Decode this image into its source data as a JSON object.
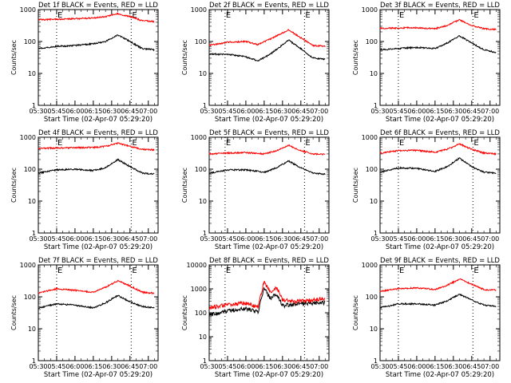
{
  "figure": {
    "xlabel": "Start Time (02-Apr-07 05:29:20)",
    "ylabel": "Counts/sec",
    "x_tick_labels": [
      "05:30",
      "05:45",
      "06:00",
      "06:15",
      "06:30",
      "06:45",
      "07:00"
    ],
    "marker_letter": "E"
  },
  "chart_data": [
    {
      "type": "line",
      "title": "Det 1f BLACK = Events, RED = LLD",
      "xlabel": "Start Time (02-Apr-07 05:29:20)",
      "ylabel": "Counts/sec",
      "yscale": "log",
      "ylim": [
        1,
        1000
      ],
      "y_tick_labels": [
        "1",
        "10",
        "100",
        "1000"
      ],
      "x_tick_labels": [
        "05:30",
        "05:45",
        "06:00",
        "06:15",
        "06:30",
        "06:45",
        "07:00"
      ],
      "xlim": [
        "05:30",
        "07:08"
      ],
      "event_markers": [
        "05:45",
        "06:46"
      ],
      "grid": false,
      "series": [
        {
          "color": "#000000",
          "x": [
            "05:30",
            "05:45",
            "06:00",
            "06:15",
            "06:25",
            "06:35",
            "06:45",
            "06:55",
            "07:05"
          ],
          "values": [
            60,
            70,
            75,
            85,
            100,
            160,
            100,
            60,
            55
          ]
        },
        {
          "color": "#ff0000",
          "x": [
            "05:30",
            "05:45",
            "06:00",
            "06:15",
            "06:25",
            "06:35",
            "06:45",
            "06:55",
            "07:05"
          ],
          "values": [
            480,
            500,
            520,
            540,
            600,
            750,
            600,
            450,
            420
          ]
        }
      ]
    },
    {
      "type": "line",
      "title": "Det 2f BLACK = Events, RED = LLD",
      "xlabel": "Start Time (02-Apr-07 05:29:20)",
      "ylabel": "Counts/sec",
      "yscale": "log",
      "ylim": [
        1,
        1000
      ],
      "y_tick_labels": [
        "1",
        "10",
        "100",
        "1000"
      ],
      "x_tick_labels": [
        "05:30",
        "05:45",
        "06:00",
        "06:15",
        "06:30",
        "06:45",
        "07:00"
      ],
      "xlim": [
        "05:30",
        "07:08"
      ],
      "event_markers": [
        "05:43",
        "06:48"
      ],
      "grid": false,
      "series": [
        {
          "color": "#000000",
          "x": [
            "05:30",
            "05:45",
            "06:00",
            "06:10",
            "06:20",
            "06:35",
            "06:45",
            "06:55",
            "07:05"
          ],
          "values": [
            40,
            40,
            33,
            25,
            40,
            110,
            60,
            30,
            28
          ]
        },
        {
          "color": "#ff0000",
          "x": [
            "05:30",
            "05:45",
            "06:00",
            "06:10",
            "06:20",
            "06:35",
            "06:45",
            "06:55",
            "07:05"
          ],
          "values": [
            75,
            95,
            100,
            80,
            120,
            230,
            130,
            75,
            70
          ]
        }
      ]
    },
    {
      "type": "line",
      "title": "Det 3f BLACK = Events, RED = LLD",
      "xlabel": "Start Time (02-Apr-07 05:29:20)",
      "ylabel": "Counts/sec",
      "yscale": "log",
      "ylim": [
        1,
        1000
      ],
      "y_tick_labels": [
        "1",
        "10",
        "100",
        "1000"
      ],
      "x_tick_labels": [
        "05:30",
        "05:45",
        "06:00",
        "06:15",
        "06:30",
        "06:45",
        "07:00"
      ],
      "xlim": [
        "05:30",
        "07:08"
      ],
      "event_markers": [
        "05:45",
        "06:46"
      ],
      "grid": false,
      "series": [
        {
          "color": "#000000",
          "x": [
            "05:30",
            "05:45",
            "06:00",
            "06:15",
            "06:25",
            "06:35",
            "06:45",
            "06:55",
            "07:05"
          ],
          "values": [
            55,
            60,
            65,
            60,
            90,
            150,
            90,
            55,
            45
          ]
        },
        {
          "color": "#ff0000",
          "x": [
            "05:30",
            "05:45",
            "06:00",
            "06:15",
            "06:25",
            "06:35",
            "06:45",
            "06:55",
            "07:05"
          ],
          "values": [
            260,
            265,
            270,
            250,
            320,
            480,
            320,
            250,
            240
          ]
        }
      ]
    },
    {
      "type": "line",
      "title": "Det 4f BLACK = Events, RED = LLD",
      "xlabel": "Start Time (02-Apr-07 05:29:20)",
      "ylabel": "Counts/sec",
      "yscale": "log",
      "ylim": [
        1,
        1000
      ],
      "y_tick_labels": [
        "1",
        "10",
        "100",
        "1000"
      ],
      "x_tick_labels": [
        "05:30",
        "05:45",
        "06:00",
        "06:15",
        "06:30",
        "06:45",
        "07:00"
      ],
      "xlim": [
        "05:30",
        "07:08"
      ],
      "event_markers": [
        "05:45",
        "06:46"
      ],
      "grid": false,
      "series": [
        {
          "color": "#000000",
          "x": [
            "05:30",
            "05:45",
            "06:00",
            "06:15",
            "06:25",
            "06:35",
            "06:45",
            "06:55",
            "07:05"
          ],
          "values": [
            75,
            95,
            100,
            90,
            110,
            200,
            120,
            75,
            70
          ]
        },
        {
          "color": "#ff0000",
          "x": [
            "05:30",
            "05:45",
            "06:00",
            "06:15",
            "06:25",
            "06:35",
            "06:45",
            "06:55",
            "07:05"
          ],
          "values": [
            450,
            460,
            470,
            480,
            520,
            650,
            520,
            420,
            400
          ]
        }
      ]
    },
    {
      "type": "line",
      "title": "Det 5f BLACK = Events, RED = LLD",
      "xlabel": "Start Time (02-Apr-07 05:29:20)",
      "ylabel": "Counts/sec",
      "yscale": "log",
      "ylim": [
        1,
        1000
      ],
      "y_tick_labels": [
        "1",
        "10",
        "100",
        "1000"
      ],
      "x_tick_labels": [
        "05:30",
        "05:45",
        "06:00",
        "06:15",
        "06:30",
        "06:45",
        "07:00"
      ],
      "xlim": [
        "05:30",
        "07:08"
      ],
      "event_markers": [
        "05:43",
        "06:48"
      ],
      "grid": false,
      "series": [
        {
          "color": "#000000",
          "x": [
            "05:30",
            "05:45",
            "06:00",
            "06:15",
            "06:25",
            "06:35",
            "06:45",
            "06:55",
            "07:05"
          ],
          "values": [
            75,
            95,
            95,
            80,
            110,
            180,
            110,
            75,
            70
          ]
        },
        {
          "color": "#ff0000",
          "x": [
            "05:30",
            "05:45",
            "06:00",
            "06:15",
            "06:25",
            "06:35",
            "06:45",
            "06:55",
            "07:05"
          ],
          "values": [
            300,
            320,
            330,
            300,
            380,
            560,
            380,
            300,
            290
          ]
        }
      ]
    },
    {
      "type": "line",
      "title": "Det 6f BLACK = Events, RED = LLD",
      "xlabel": "Start Time (02-Apr-07 05:29:20)",
      "ylabel": "Counts/sec",
      "yscale": "log",
      "ylim": [
        1,
        1000
      ],
      "y_tick_labels": [
        "1",
        "10",
        "100",
        "1000"
      ],
      "x_tick_labels": [
        "05:30",
        "05:45",
        "06:00",
        "06:15",
        "06:30",
        "06:45",
        "07:00"
      ],
      "xlim": [
        "05:30",
        "07:08"
      ],
      "event_markers": [
        "05:45",
        "06:46"
      ],
      "grid": false,
      "series": [
        {
          "color": "#000000",
          "x": [
            "05:30",
            "05:45",
            "06:00",
            "06:15",
            "06:25",
            "06:35",
            "06:45",
            "06:55",
            "07:05"
          ],
          "values": [
            80,
            110,
            105,
            85,
            120,
            220,
            120,
            80,
            75
          ]
        },
        {
          "color": "#ff0000",
          "x": [
            "05:30",
            "05:45",
            "06:00",
            "06:15",
            "06:25",
            "06:35",
            "06:45",
            "06:55",
            "07:05"
          ],
          "values": [
            320,
            380,
            390,
            340,
            420,
            620,
            420,
            320,
            300
          ]
        }
      ]
    },
    {
      "type": "line",
      "title": "Det 7f BLACK = Events, RED = LLD",
      "xlabel": "Start Time (02-Apr-07 05:29:20)",
      "ylabel": "Counts/sec",
      "yscale": "log",
      "ylim": [
        1,
        1000
      ],
      "y_tick_labels": [
        "1",
        "10",
        "100",
        "1000"
      ],
      "x_tick_labels": [
        "05:30",
        "05:45",
        "06:00",
        "06:15",
        "06:30",
        "06:45",
        "07:00"
      ],
      "xlim": [
        "05:30",
        "07:08"
      ],
      "event_markers": [
        "05:45",
        "06:46"
      ],
      "grid": false,
      "series": [
        {
          "color": "#000000",
          "x": [
            "05:30",
            "05:45",
            "06:00",
            "06:15",
            "06:25",
            "06:35",
            "06:45",
            "06:55",
            "07:05"
          ],
          "values": [
            45,
            60,
            55,
            45,
            65,
            110,
            70,
            50,
            45
          ]
        },
        {
          "color": "#ff0000",
          "x": [
            "05:30",
            "05:45",
            "06:00",
            "06:15",
            "06:25",
            "06:35",
            "06:45",
            "06:55",
            "07:05"
          ],
          "values": [
            130,
            180,
            160,
            140,
            200,
            320,
            220,
            140,
            130
          ]
        }
      ]
    },
    {
      "type": "line",
      "title": "Det 8f BLACK = Events, RED = LLD",
      "xlabel": "Start Time (02-Apr-07 05:29:20)",
      "ylabel": "Counts/sec",
      "yscale": "log",
      "ylim": [
        1,
        10000
      ],
      "y_tick_labels": [
        "1",
        "10",
        "100",
        "1000",
        "10000"
      ],
      "x_tick_labels": [
        "05:30",
        "05:45",
        "06:00",
        "06:15",
        "06:30",
        "06:45",
        "07:00"
      ],
      "xlim": [
        "05:30",
        "07:08"
      ],
      "event_markers": [
        "05:43",
        "06:48"
      ],
      "grid": false,
      "series": [
        {
          "color": "#000000",
          "x": [
            "05:30",
            "05:45",
            "06:00",
            "06:10",
            "06:15",
            "06:20",
            "06:25",
            "06:30",
            "06:40",
            "06:50",
            "07:05"
          ],
          "values": [
            80,
            120,
            150,
            110,
            1100,
            400,
            600,
            200,
            220,
            250,
            260
          ]
        },
        {
          "color": "#ff0000",
          "x": [
            "05:30",
            "05:45",
            "06:00",
            "06:10",
            "06:15",
            "06:20",
            "06:25",
            "06:30",
            "06:40",
            "06:50",
            "07:05"
          ],
          "values": [
            160,
            220,
            250,
            180,
            2000,
            700,
            1200,
            350,
            300,
            320,
            400
          ]
        }
      ]
    },
    {
      "type": "line",
      "title": "Det 9f BLACK = Events, RED = LLD",
      "xlabel": "Start Time (02-Apr-07 05:29:20)",
      "ylabel": "Counts/sec",
      "yscale": "log",
      "ylim": [
        1,
        1000
      ],
      "y_tick_labels": [
        "1",
        "10",
        "100",
        "1000"
      ],
      "x_tick_labels": [
        "05:30",
        "05:45",
        "06:00",
        "06:15",
        "06:30",
        "06:45",
        "07:00"
      ],
      "xlim": [
        "05:30",
        "07:08"
      ],
      "event_markers": [
        "05:45",
        "06:46"
      ],
      "grid": false,
      "series": [
        {
          "color": "#000000",
          "x": [
            "05:30",
            "05:45",
            "06:00",
            "06:15",
            "06:25",
            "06:35",
            "06:45",
            "06:55",
            "07:05"
          ],
          "values": [
            45,
            60,
            60,
            55,
            75,
            120,
            80,
            55,
            50
          ]
        },
        {
          "color": "#ff0000",
          "x": [
            "05:30",
            "05:45",
            "06:00",
            "06:15",
            "06:25",
            "06:35",
            "06:45",
            "06:55",
            "07:05"
          ],
          "values": [
            150,
            180,
            190,
            170,
            230,
            360,
            250,
            170,
            160
          ]
        }
      ]
    }
  ]
}
